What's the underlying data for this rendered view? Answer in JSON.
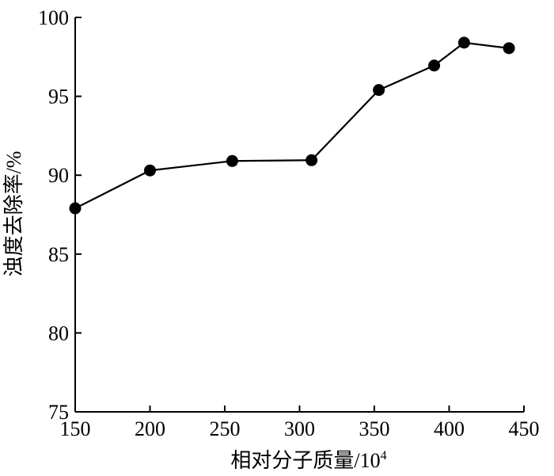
{
  "chart_data": {
    "type": "line",
    "title": "",
    "xlabel": "相对分子质量/10",
    "xlabel_sup": "4",
    "ylabel": "浊度去除率/%",
    "xlim": [
      150,
      450
    ],
    "ylim": [
      75,
      100
    ],
    "xticks": [
      150,
      200,
      250,
      300,
      350,
      400,
      450
    ],
    "yticks": [
      75,
      80,
      85,
      90,
      95,
      100
    ],
    "grid": false,
    "marker": "filled-circle",
    "colors": {
      "line": "#000000",
      "marker": "#000000",
      "axis": "#000000"
    },
    "series": [
      {
        "x": [
          150,
          200,
          255,
          308,
          353,
          390,
          410,
          440
        ],
        "y": [
          87.9,
          90.3,
          90.9,
          90.95,
          95.4,
          96.95,
          98.4,
          98.05
        ]
      }
    ]
  }
}
